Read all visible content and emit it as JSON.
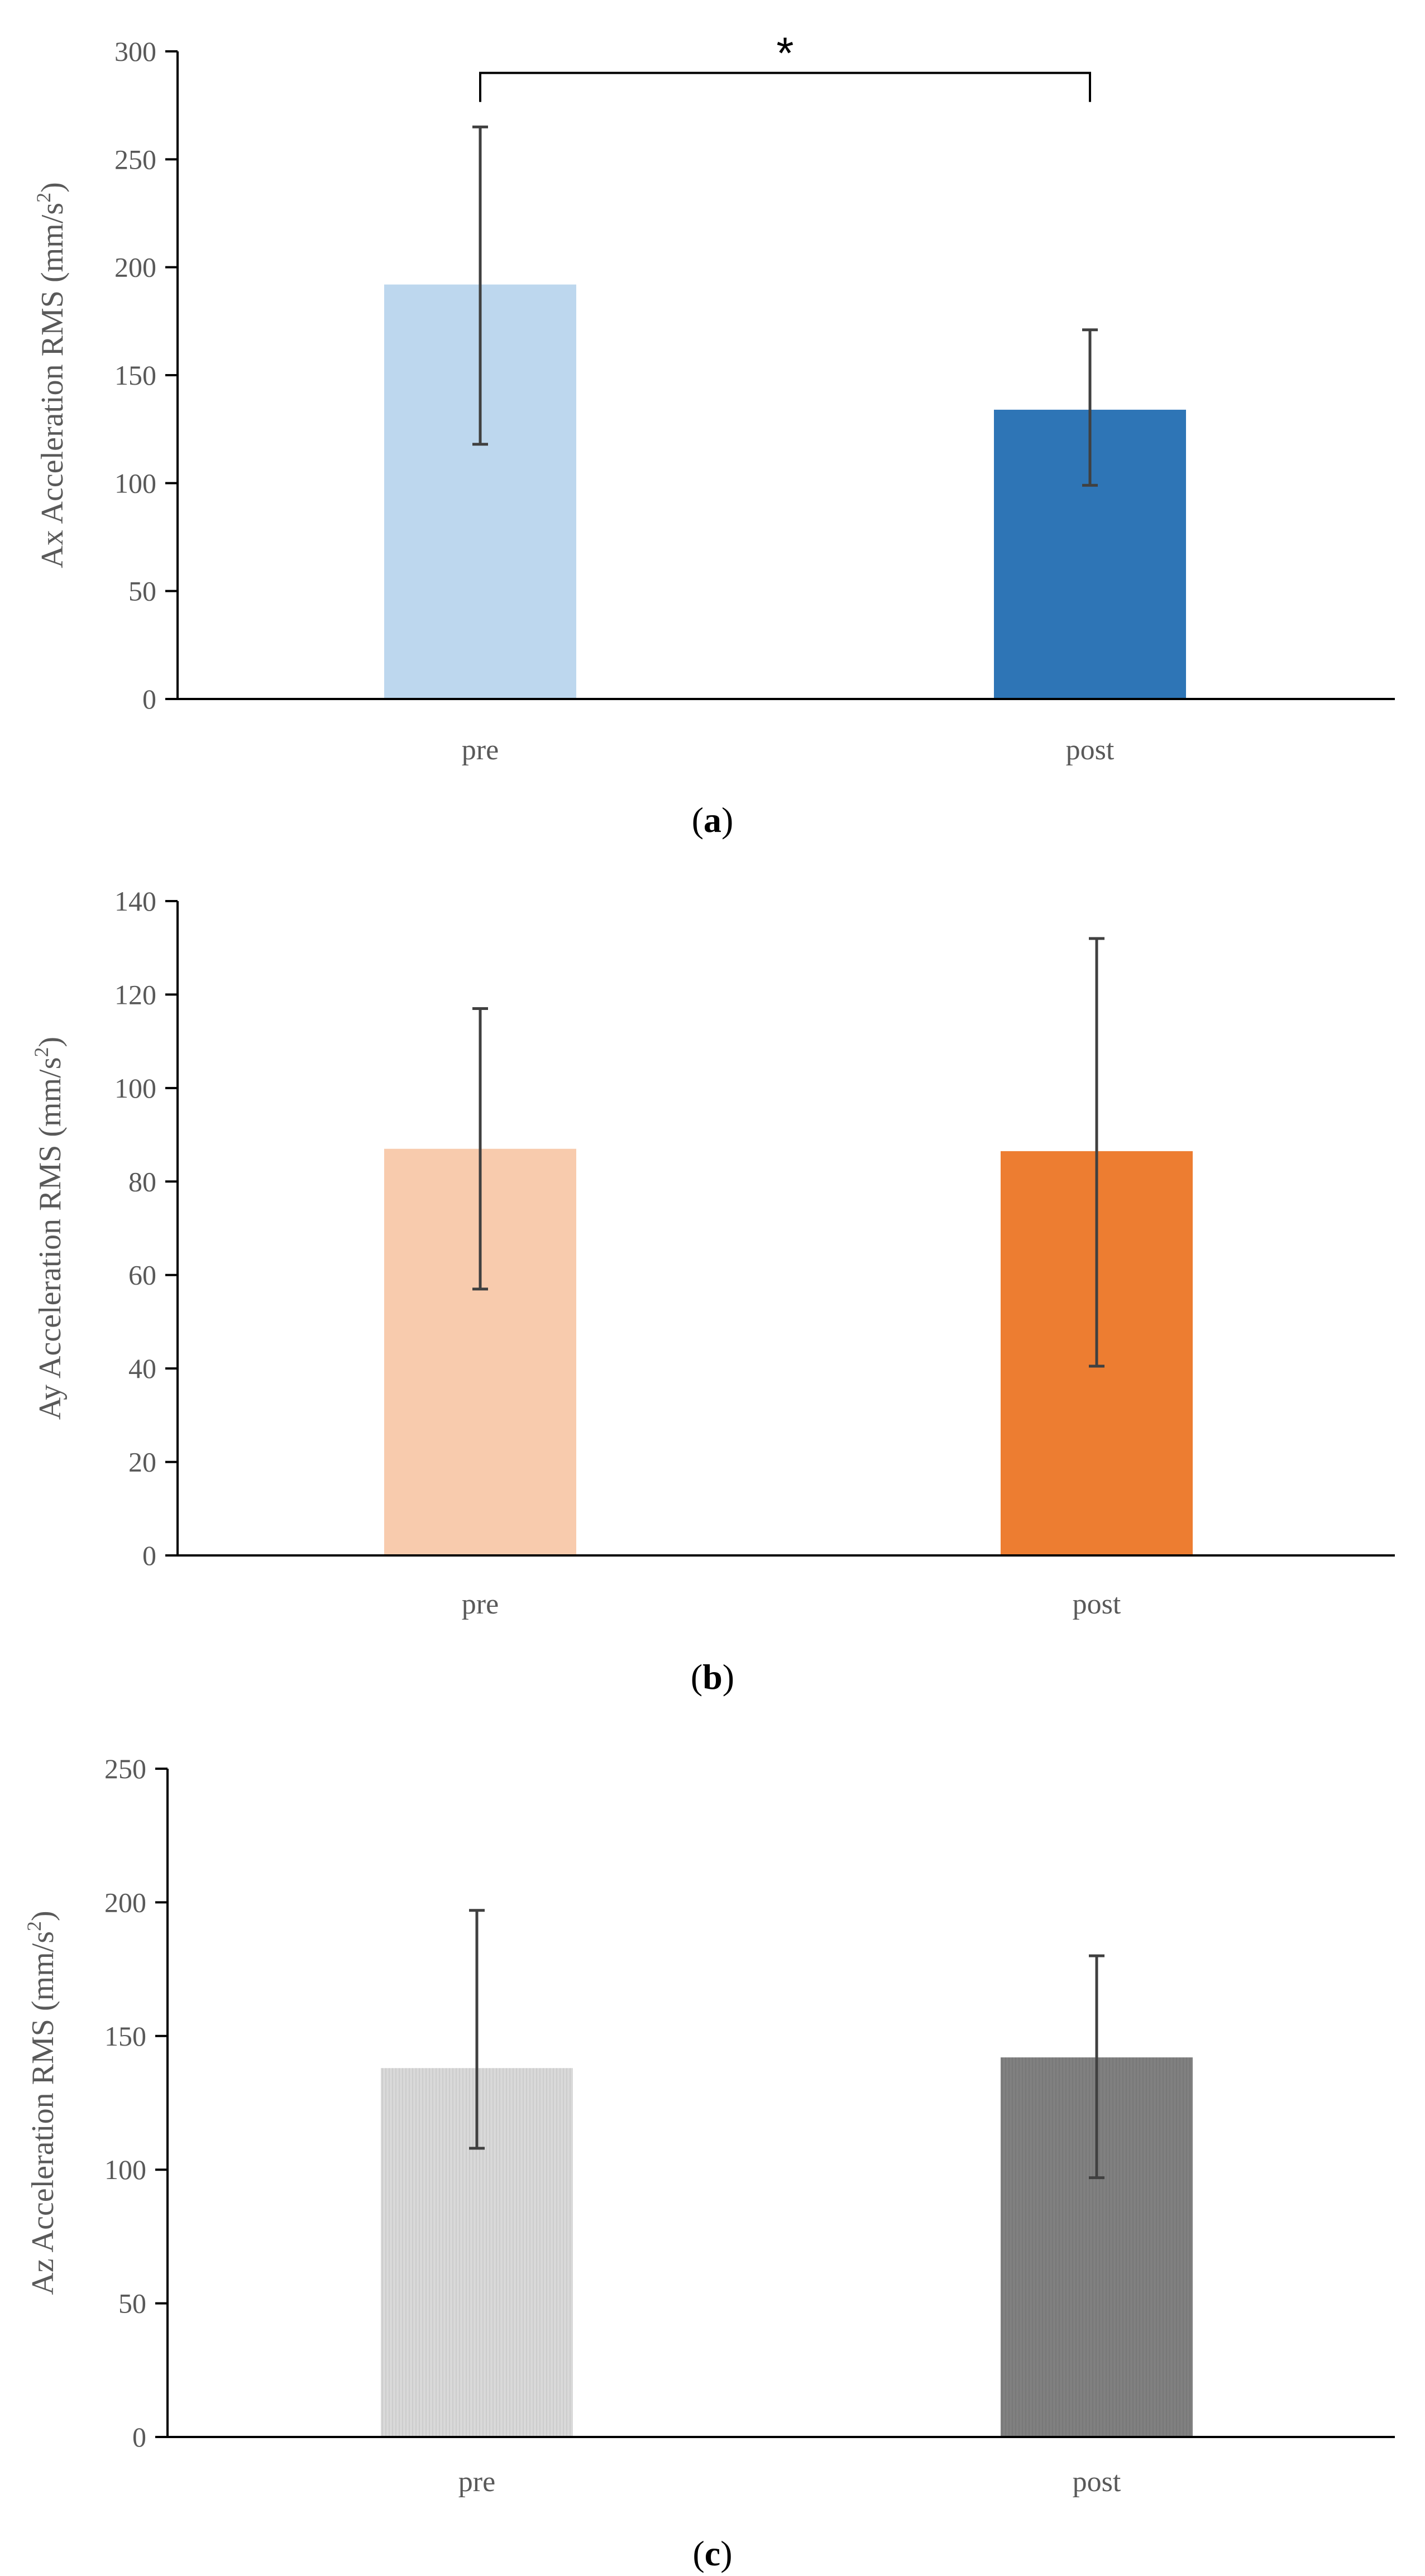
{
  "colors": {
    "axis": "#000000",
    "tick_text": "#595959",
    "error_bar": "#404040",
    "bracket": "#000000"
  },
  "chart_data": [
    {
      "type": "bar",
      "panel_label": "a",
      "categories": [
        "pre",
        "post"
      ],
      "values": [
        192,
        134
      ],
      "error_low": [
        118,
        99
      ],
      "error_high": [
        265,
        171
      ],
      "colors": [
        "#BDD7EE",
        "#2E75B6"
      ],
      "ylabel_main": "Ax Acceleration RMS (mm/s",
      "ylabel_sup": "2",
      "ylabel_end": ")",
      "ylim": [
        0,
        300
      ],
      "yticks": [
        0,
        50,
        100,
        150,
        200,
        250,
        300
      ],
      "yticklabels": [
        "0",
        "50",
        "100",
        "150",
        "200",
        "250",
        "300"
      ],
      "significance": {
        "from": 0,
        "to": 1,
        "y": 290,
        "label": "*"
      }
    },
    {
      "type": "bar",
      "panel_label": "b",
      "categories": [
        "pre",
        "post"
      ],
      "values": [
        87,
        86.5
      ],
      "error_low": [
        57,
        40.5
      ],
      "error_high": [
        117,
        132
      ],
      "colors": [
        "#F8CBAD",
        "#ED7D31"
      ],
      "ylabel_main": "Ay Acceleration RMS (mm/s",
      "ylabel_sup": "2",
      "ylabel_end": ")",
      "ylim": [
        0,
        140
      ],
      "yticks": [
        0,
        20,
        40,
        60,
        80,
        100,
        120,
        140
      ],
      "yticklabels": [
        "0",
        "20",
        "40",
        "60",
        "80",
        "100",
        "120",
        "140"
      ]
    },
    {
      "type": "bar",
      "panel_label": "c",
      "categories": [
        "pre",
        "post"
      ],
      "values": [
        138,
        142
      ],
      "error_low": [
        108,
        97
      ],
      "error_high": [
        197,
        180
      ],
      "colors": [
        "#D9D9D9",
        "#808080"
      ],
      "ylabel_main": "Az Acceleration RMS (mm/s",
      "ylabel_sup": "2",
      "ylabel_end": ")",
      "ylim": [
        0,
        250
      ],
      "yticks": [
        0,
        50,
        100,
        150,
        200,
        250
      ],
      "yticklabels": [
        "0",
        "50",
        "100",
        "150",
        "200",
        "250"
      ]
    }
  ]
}
